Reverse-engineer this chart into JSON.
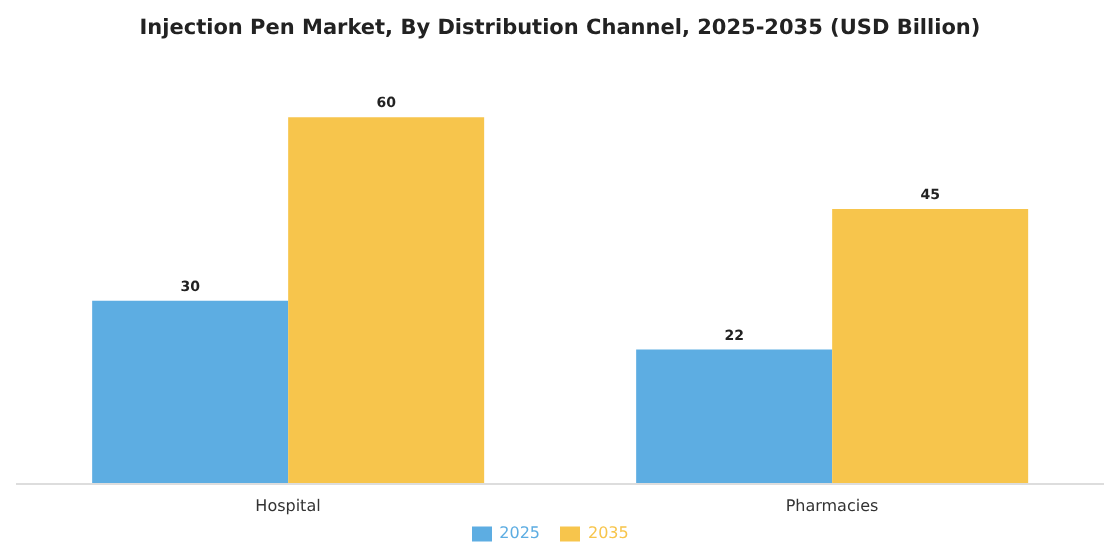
{
  "chart_data": {
    "type": "bar",
    "title": "Injection Pen Market, By Distribution Channel, 2025-2035 (USD Billion)",
    "categories": [
      "Hospital",
      "Pharmacies"
    ],
    "series": [
      {
        "name": "2025",
        "color": "#5dade2",
        "values": [
          30,
          22
        ]
      },
      {
        "name": "2035",
        "color": "#f7c54c",
        "values": [
          60,
          45
        ]
      }
    ],
    "data_labels": true,
    "legend": "bottom",
    "grid": false
  }
}
